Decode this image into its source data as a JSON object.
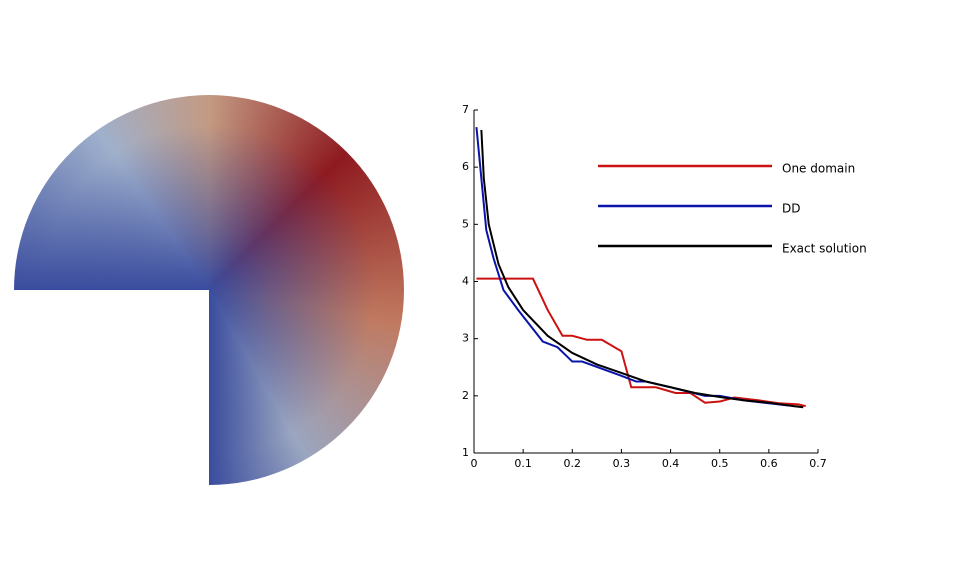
{
  "chart_data": {
    "type": "line",
    "xlim": [
      0,
      0.7
    ],
    "xticks": [
      0,
      0.1,
      0.2,
      0.3,
      0.4,
      0.5,
      0.6,
      0.7
    ],
    "ylim": [
      1,
      7
    ],
    "yticks": [
      1,
      2,
      3,
      4,
      5,
      6,
      7
    ],
    "series": [
      {
        "name": "One domain",
        "color": "#cc1111",
        "x": [
          0.005,
          0.12,
          0.15,
          0.18,
          0.2,
          0.23,
          0.26,
          0.3,
          0.32,
          0.37,
          0.41,
          0.44,
          0.47,
          0.5,
          0.53,
          0.58,
          0.62,
          0.66,
          0.675
        ],
        "values": [
          4.05,
          4.05,
          3.5,
          3.05,
          3.05,
          2.98,
          2.98,
          2.78,
          2.15,
          2.15,
          2.05,
          2.05,
          1.88,
          1.9,
          1.97,
          1.92,
          1.87,
          1.85,
          1.82
        ]
      },
      {
        "name": "DD",
        "color": "#0a14a8",
        "x": [
          0.005,
          0.015,
          0.025,
          0.04,
          0.06,
          0.09,
          0.14,
          0.17,
          0.2,
          0.22,
          0.3,
          0.33,
          0.35,
          0.4,
          0.47,
          0.5,
          0.55,
          0.6,
          0.64
        ],
        "values": [
          6.7,
          5.8,
          4.9,
          4.4,
          3.85,
          3.5,
          2.95,
          2.85,
          2.6,
          2.6,
          2.35,
          2.25,
          2.25,
          2.15,
          2.0,
          2.0,
          1.92,
          1.87,
          1.83
        ]
      },
      {
        "name": "Exact solution",
        "color": "#000000",
        "x": [
          0.015,
          0.02,
          0.03,
          0.05,
          0.07,
          0.1,
          0.15,
          0.2,
          0.25,
          0.3,
          0.35,
          0.4,
          0.45,
          0.5,
          0.55,
          0.6,
          0.65,
          0.67
        ],
        "values": [
          6.65,
          5.8,
          5.0,
          4.3,
          3.9,
          3.5,
          3.05,
          2.75,
          2.55,
          2.4,
          2.25,
          2.15,
          2.05,
          1.98,
          1.92,
          1.88,
          1.82,
          1.8
        ]
      }
    ]
  }
}
